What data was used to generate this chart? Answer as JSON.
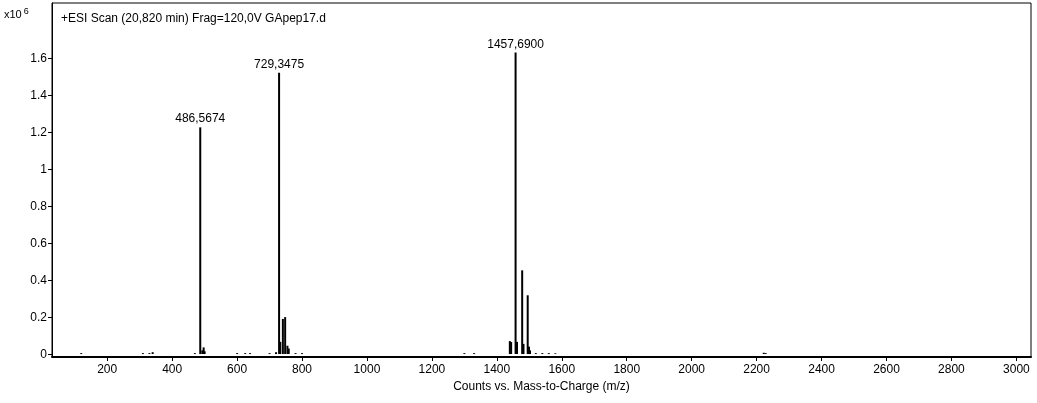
{
  "chart_data": {
    "type": "bar",
    "title": "+ESI Scan (20,820 min) Frag=120,0V GApep17.d",
    "xlabel": "Counts vs. Mass-to-Charge (m/z)",
    "ylabel": "x10$^{6}$",
    "x": [
      120,
      310,
      330,
      340,
      470,
      486.5674,
      493,
      497,
      500,
      600,
      625,
      640,
      700,
      720,
      729.3475,
      733,
      741,
      748,
      755,
      759,
      780,
      800,
      1300,
      1330,
      1440,
      1444,
      1457.69,
      1462,
      1478,
      1482,
      1495,
      1499,
      1502,
      1520,
      1540,
      1560,
      1580,
      2222,
      2228
    ],
    "values": [
      0.005,
      0.005,
      0.005,
      0.01,
      0.005,
      1.227,
      0.02,
      0.036,
      0.015,
      0.005,
      0.005,
      0.005,
      0.005,
      0.01,
      1.523,
      0.066,
      0.19,
      0.2,
      0.045,
      0.03,
      0.005,
      0.005,
      0.005,
      0.005,
      0.07,
      0.065,
      1.632,
      0.066,
      0.453,
      0.055,
      0.318,
      0.04,
      0.02,
      0.005,
      0.005,
      0.005,
      0.004,
      0.007,
      0.005
    ],
    "color": "#000000",
    "annotations": [
      {
        "text": "486,5674",
        "x": 486.5674,
        "y": 1.227
      },
      {
        "text": "729,3475",
        "x": 729.3475,
        "y": 1.523
      },
      {
        "text": "1457,6900",
        "x": 1457.69,
        "y": 1.632
      }
    ],
    "xlim": [
      30,
      3045
    ],
    "xticks": [
      200,
      400,
      600,
      800,
      1000,
      1200,
      1400,
      1600,
      1800,
      2000,
      2200,
      2400,
      2600,
      2800,
      3000
    ],
    "ylim": [
      -0.016,
      1.9
    ],
    "yticks": [
      0,
      0.2,
      0.4,
      0.6,
      0.8,
      1,
      1.2,
      1.4,
      1.6
    ],
    "grid": false
  }
}
